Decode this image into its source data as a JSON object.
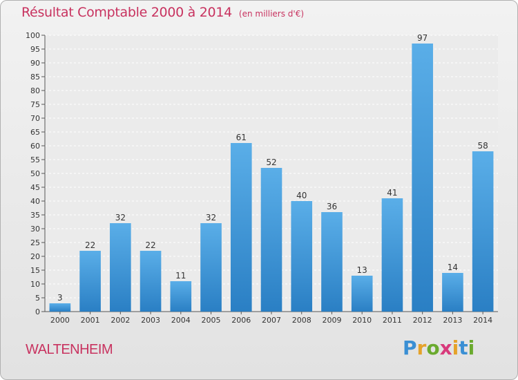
{
  "title": "Résultat Comptable 2000 à 2014",
  "unit_label": "(en milliers d'€)",
  "town": "WALTENHEIM",
  "logo": {
    "text": "Proxiti",
    "colors": [
      "#3a8fd4",
      "#e5a22a",
      "#6aaa2e",
      "#d83a7c",
      "#e5a22a",
      "#3a8fd4",
      "#6aaa2e"
    ]
  },
  "colors": {
    "title": "#c8325f",
    "bar_light": "#5aaee8",
    "bar_dark": "#2a7fc4"
  },
  "chart_data": {
    "type": "bar",
    "categories": [
      "2000",
      "2001",
      "2002",
      "2003",
      "2004",
      "2005",
      "2006",
      "2007",
      "2008",
      "2009",
      "2010",
      "2011",
      "2012",
      "2013",
      "2014"
    ],
    "values": [
      3,
      22,
      32,
      22,
      11,
      32,
      61,
      52,
      40,
      36,
      13,
      41,
      97,
      14,
      58
    ],
    "title": "Résultat Comptable 2000 à 2014",
    "ylim": [
      0,
      100
    ],
    "ytick_step": 5,
    "grid": true
  }
}
